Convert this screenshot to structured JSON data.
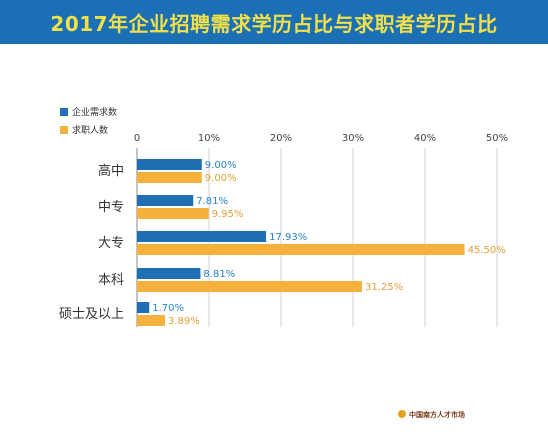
{
  "chart_data": {
    "type": "bar",
    "orientation": "horizontal",
    "title": "2017年企业招聘需求学历占比与求职者学历占比",
    "categories": [
      "高中",
      "中专",
      "大专",
      "本科",
      "硕士及以上"
    ],
    "series": [
      {
        "name": "企业需求数",
        "values": [
          9.0,
          7.81,
          17.93,
          8.81,
          1.7
        ],
        "labels": [
          "9.00%",
          "7.81%",
          "17.93%",
          "8.81%",
          "1.70%"
        ]
      },
      {
        "name": "求职人数",
        "values": [
          9.0,
          9.95,
          45.5,
          31.25,
          3.89
        ],
        "labels": [
          "9.00%",
          "9.95%",
          "45.50%",
          "31.25%",
          "3.89%"
        ]
      }
    ],
    "xlim": [
      0,
      50
    ],
    "ticks": [
      0,
      10,
      20,
      30,
      40,
      50
    ],
    "tick_labels": [
      "0",
      "10%",
      "20%",
      "30%",
      "40%",
      "50%"
    ],
    "grid": true,
    "legend_position": "top-left"
  },
  "colors": {
    "title_bg": "#1a6fb5",
    "title_text": "#f2e04a",
    "series_blue": "#1e6fb4",
    "series_orange": "#f5b13d",
    "grid": "#d0d0d0"
  },
  "footer": {
    "logo_text": "中国南方人才市场",
    "logo_icon": "sun-logo-icon"
  }
}
